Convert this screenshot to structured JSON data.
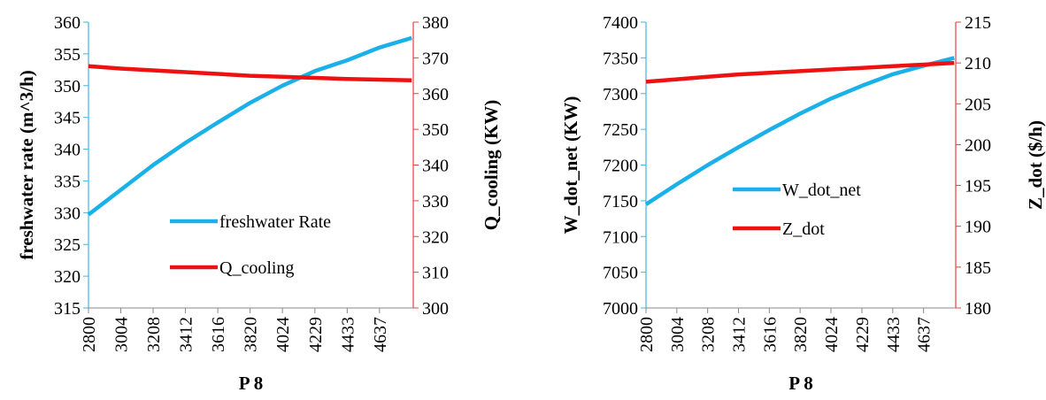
{
  "chart_data": [
    {
      "type": "line",
      "title": "",
      "xlabel": "P 8",
      "ylabel_left": "freshwater rate (m^3/h)",
      "ylabel_right": "Q_cooling (KW)",
      "x_tick_labels": [
        "2800",
        "3004",
        "3208",
        "3412",
        "3616",
        "3820",
        "4024",
        "4229",
        "4433",
        "4637"
      ],
      "xlim": [
        2800,
        4850
      ],
      "ylim_left": [
        315,
        360
      ],
      "ylim_right": [
        300,
        380
      ],
      "yticks_left": [
        "315",
        "320",
        "325",
        "330",
        "335",
        "340",
        "345",
        "350",
        "355",
        "360"
      ],
      "yticks_right": [
        "300",
        "310",
        "320",
        "330",
        "340",
        "350",
        "360",
        "370",
        "380"
      ],
      "legend_position": "center-bottom",
      "series": [
        {
          "name": "freshwater Rate",
          "axis": "left",
          "color": "#1ab0e8",
          "x": [
            2800,
            3004,
            3208,
            3412,
            3616,
            3820,
            4024,
            4229,
            4433,
            4637,
            4840
          ],
          "values": [
            329.7,
            333.6,
            337.5,
            341.0,
            344.2,
            347.3,
            350.0,
            352.3,
            354.0,
            356.0,
            357.5
          ]
        },
        {
          "name": "Q_cooling",
          "axis": "right",
          "color": "#ee1111",
          "x": [
            2800,
            3004,
            3208,
            3412,
            3616,
            3820,
            4024,
            4229,
            4433,
            4637,
            4840
          ],
          "values": [
            367.7,
            367.0,
            366.5,
            366.0,
            365.5,
            365.0,
            364.7,
            364.4,
            364.1,
            363.9,
            363.7
          ]
        }
      ]
    },
    {
      "type": "line",
      "title": "",
      "xlabel": "P 8",
      "ylabel_left": "W_dot_net (KW)",
      "ylabel_right": "Z_dot ($/h)",
      "x_tick_labels": [
        "2800",
        "3004",
        "3208",
        "3412",
        "3616",
        "3820",
        "4024",
        "4229",
        "4433",
        "4637"
      ],
      "xlim": [
        2800,
        4850
      ],
      "ylim_left": [
        7000,
        7400
      ],
      "ylim_right": [
        180,
        215
      ],
      "yticks_left": [
        "7000",
        "7050",
        "7100",
        "7150",
        "7200",
        "7250",
        "7300",
        "7350",
        "7400"
      ],
      "yticks_right": [
        "180",
        "185",
        "190",
        "195",
        "200",
        "205",
        "210",
        "215"
      ],
      "legend_position": "center-right",
      "series": [
        {
          "name": "W_dot_net",
          "axis": "left",
          "color": "#1ab0e8",
          "x": [
            2800,
            3004,
            3208,
            3412,
            3616,
            3820,
            4024,
            4229,
            4433,
            4637,
            4840
          ],
          "values": [
            7145,
            7173,
            7200,
            7225,
            7249,
            7272,
            7293,
            7311,
            7327,
            7339,
            7350
          ]
        },
        {
          "name": "Z_dot",
          "axis": "right",
          "color": "#ee1111",
          "x": [
            2800,
            3004,
            3208,
            3412,
            3616,
            3820,
            4024,
            4229,
            4433,
            4637,
            4840
          ],
          "values": [
            207.7,
            208.0,
            208.3,
            208.6,
            208.8,
            209.0,
            209.2,
            209.4,
            209.6,
            209.8,
            210.0
          ]
        }
      ]
    }
  ]
}
